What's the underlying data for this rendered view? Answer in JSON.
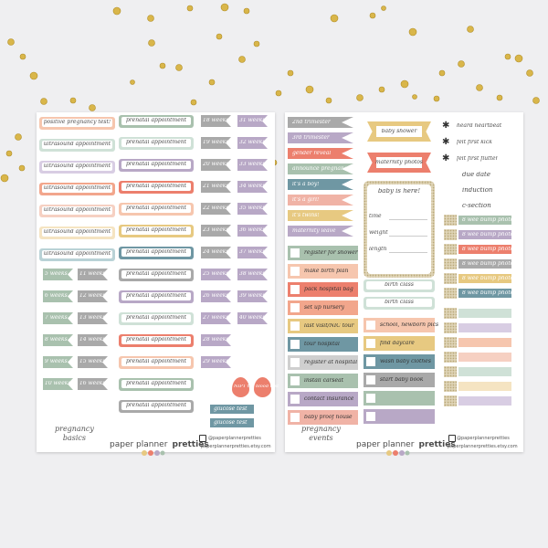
{
  "colors": {
    "sage": "#a9c1ae",
    "mint": "#cfe1d7",
    "peach": "#f6c6ae",
    "coral": "#ec7f6d",
    "orange": "#f2a68c",
    "lavender": "#b8a8c6",
    "lilac": "#d8cde3",
    "teal": "#6f97a3",
    "gold": "#e7c981",
    "gray": "#a9a9a9",
    "lightgray": "#cfcfcf",
    "cream": "#f5e4c2",
    "pink": "#f0b3a6",
    "blush": "#f6d0c2",
    "sky": "#b9d2d6"
  },
  "left_sheet": {
    "appointments_col1": [
      {
        "label": "positive pregnancy test!",
        "color": "#f6c6ae"
      },
      {
        "label": "ultrasound appointment",
        "color": "#cfe1d7"
      },
      {
        "label": "ultrasound appointment",
        "color": "#d8cde3"
      },
      {
        "label": "ultrasound appointment",
        "color": "#f2a68c"
      },
      {
        "label": "ultrasound appointment",
        "color": "#f6d0c2"
      },
      {
        "label": "ultrasound appointment",
        "color": "#f5e4c2"
      },
      {
        "label": "ultrasound appointment",
        "color": "#b9d2d6"
      }
    ],
    "appointments_col2": [
      {
        "label": "prenatal appointment",
        "color": "#a9c1ae"
      },
      {
        "label": "prenatal appointment",
        "color": "#cfe1d7"
      },
      {
        "label": "prenatal appointment",
        "color": "#b8a8c6"
      },
      {
        "label": "prenatal appointment",
        "color": "#ec7f6d"
      },
      {
        "label": "prenatal appointment",
        "color": "#f6c6ae"
      },
      {
        "label": "prenatal appointment",
        "color": "#e7c981"
      },
      {
        "label": "prenatal appointment",
        "color": "#6f97a3"
      },
      {
        "label": "prenatal appointment",
        "color": "#a9a9a9"
      },
      {
        "label": "prenatal appointment",
        "color": "#b8a8c6"
      },
      {
        "label": "prenatal appointment",
        "color": "#cfe1d7"
      },
      {
        "label": "prenatal appointment",
        "color": "#ec7f6d"
      },
      {
        "label": "prenatal appointment",
        "color": "#f6c6ae"
      },
      {
        "label": "prenatal appointment",
        "color": "#a9c1ae"
      },
      {
        "label": "prenatal appointment",
        "color": "#a9a9a9"
      }
    ],
    "weeks_a": [
      {
        "label": "5 weeks",
        "color": "#a9c1ae"
      },
      {
        "label": "6 weeks",
        "color": "#a9c1ae"
      },
      {
        "label": "7 weeks",
        "color": "#a9c1ae"
      },
      {
        "label": "8 weeks",
        "color": "#a9c1ae"
      },
      {
        "label": "9 weeks",
        "color": "#a9c1ae"
      },
      {
        "label": "10 weeks",
        "color": "#a9c1ae"
      }
    ],
    "weeks_b": [
      {
        "label": "11 weeks",
        "color": "#a9a9a9"
      },
      {
        "label": "12 weeks",
        "color": "#a9a9a9"
      },
      {
        "label": "13 weeks",
        "color": "#a9a9a9"
      },
      {
        "label": "14 weeks",
        "color": "#a9a9a9"
      },
      {
        "label": "15 weeks",
        "color": "#a9a9a9"
      },
      {
        "label": "16 weeks",
        "color": "#a9a9a9"
      }
    ],
    "weeks_c": [
      {
        "label": "18 weeks",
        "color": "#a9a9a9"
      },
      {
        "label": "19 weeks",
        "color": "#a9a9a9"
      },
      {
        "label": "20 weeks",
        "color": "#a9a9a9"
      },
      {
        "label": "21 weeks",
        "color": "#a9a9a9"
      },
      {
        "label": "22 weeks",
        "color": "#a9a9a9"
      },
      {
        "label": "23 weeks",
        "color": "#a9a9a9"
      },
      {
        "label": "24 weeks",
        "color": "#a9a9a9"
      },
      {
        "label": "25 weeks",
        "color": "#b8a8c6"
      },
      {
        "label": "26 weeks",
        "color": "#b8a8c6"
      },
      {
        "label": "27 weeks",
        "color": "#b8a8c6"
      },
      {
        "label": "28 weeks",
        "color": "#b8a8c6"
      },
      {
        "label": "29 weeks",
        "color": "#b8a8c6"
      }
    ],
    "weeks_d": [
      {
        "label": "31 weeks",
        "color": "#b8a8c6"
      },
      {
        "label": "32 weeks",
        "color": "#b8a8c6"
      },
      {
        "label": "33 weeks",
        "color": "#b8a8c6"
      },
      {
        "label": "34 weeks",
        "color": "#b8a8c6"
      },
      {
        "label": "35 weeks",
        "color": "#b8a8c6"
      },
      {
        "label": "36 weeks",
        "color": "#b8a8c6"
      },
      {
        "label": "37 weeks",
        "color": "#b8a8c6"
      },
      {
        "label": "38 weeks",
        "color": "#b8a8c6"
      },
      {
        "label": "39 weeks",
        "color": "#b8a8c6"
      },
      {
        "label": "40 weeks",
        "color": "#b8a8c6"
      }
    ],
    "drops": [
      {
        "label": "NIPT test",
        "color": "#ec7f6d"
      },
      {
        "label": "blood test",
        "color": "#ec7f6d"
      }
    ],
    "glucose": [
      {
        "label": "glucose test",
        "color": "#6f97a3"
      },
      {
        "label": "glucose test",
        "color": "#6f97a3"
      }
    ],
    "footer": {
      "line1": "pregnancy",
      "line2": "basics"
    }
  },
  "right_sheet": {
    "flags_left": [
      {
        "label": "2nd trimester",
        "color": "#a9a9a9"
      },
      {
        "label": "3rd trimester",
        "color": "#b8a8c6"
      },
      {
        "label": "gender reveal",
        "color": "#ec7f6d"
      },
      {
        "label": "announce pregnancy",
        "color": "#a9c1ae"
      },
      {
        "label": "it's a boy!",
        "color": "#6f97a3"
      },
      {
        "label": "it's a girl!",
        "color": "#f0b3a6"
      },
      {
        "label": "it's twins!",
        "color": "#e7c981"
      },
      {
        "label": "maternity leave",
        "color": "#b8a8c6"
      }
    ],
    "checks_left": [
      {
        "label": "register for shower",
        "color": "#a9c1ae"
      },
      {
        "label": "make birth plan",
        "color": "#f6c6ae"
      },
      {
        "label": "pack hospital bag",
        "color": "#ec7f6d"
      },
      {
        "label": "set up nursery",
        "color": "#f2a68c"
      },
      {
        "label": "last visit/NIC tour",
        "color": "#e7c981"
      },
      {
        "label": "tour hospital",
        "color": "#6f97a3"
      },
      {
        "label": "register at hospital",
        "color": "#cfcfcf"
      },
      {
        "label": "install carseat",
        "color": "#a9c1ae"
      },
      {
        "label": "contact insurance",
        "color": "#b8a8c6"
      },
      {
        "label": "baby proof house",
        "color": "#f0b3a6"
      }
    ],
    "banners": [
      {
        "label": "baby shower",
        "color": "#e7c981"
      },
      {
        "label": "maternity photos",
        "color": "#ec7f6d"
      }
    ],
    "card": {
      "title": "baby is here!",
      "rows": [
        "time",
        "weight",
        "length"
      ]
    },
    "class_bars": [
      {
        "label": "birth class",
        "color": "#cfe1d7"
      },
      {
        "label": "birth class",
        "color": "#cfe1d7"
      }
    ],
    "checks_mid": [
      {
        "label": "school, newborn pics",
        "color": "#f6c6ae"
      },
      {
        "label": "find daycare",
        "color": "#e7c981"
      },
      {
        "label": "wash baby clothes",
        "color": "#6f97a3"
      },
      {
        "label": "start baby book",
        "color": "#a9a9a9"
      },
      {
        "label": "",
        "color": "#a9c1ae"
      },
      {
        "label": "",
        "color": "#b8a8c6"
      }
    ],
    "icons": [
      {
        "label": "heard heartbeat"
      },
      {
        "label": "felt first kick"
      },
      {
        "label": "felt first flutter"
      }
    ],
    "date_labels": [
      "due date",
      "induction",
      "c-section"
    ],
    "bumps": [
      {
        "label": "8 wee bump photo",
        "color": "#a9c1ae"
      },
      {
        "label": "8 wee bump photo",
        "color": "#b8a8c6"
      },
      {
        "label": "8 wee bump photo",
        "color": "#ec7f6d"
      },
      {
        "label": "8 wee bump photo",
        "color": "#a9a9a9"
      },
      {
        "label": "8 wee bump photo",
        "color": "#e7c981"
      },
      {
        "label": "8 wee bump photo",
        "color": "#6f97a3"
      }
    ],
    "plain_bars": [
      "#cfe1d7",
      "#d8cde3",
      "#f6c6ae",
      "#f6d0c2",
      "#cfe1d7",
      "#f5e4c2",
      "#d8cde3"
    ],
    "footer": {
      "line1": "pregnancy",
      "line2": "events"
    }
  },
  "brand": {
    "name_left": "paper planner",
    "name_right": "pretties",
    "instagram": "@paperplannerpretties",
    "etsy": "paperplannerpretties.etsy.com"
  }
}
